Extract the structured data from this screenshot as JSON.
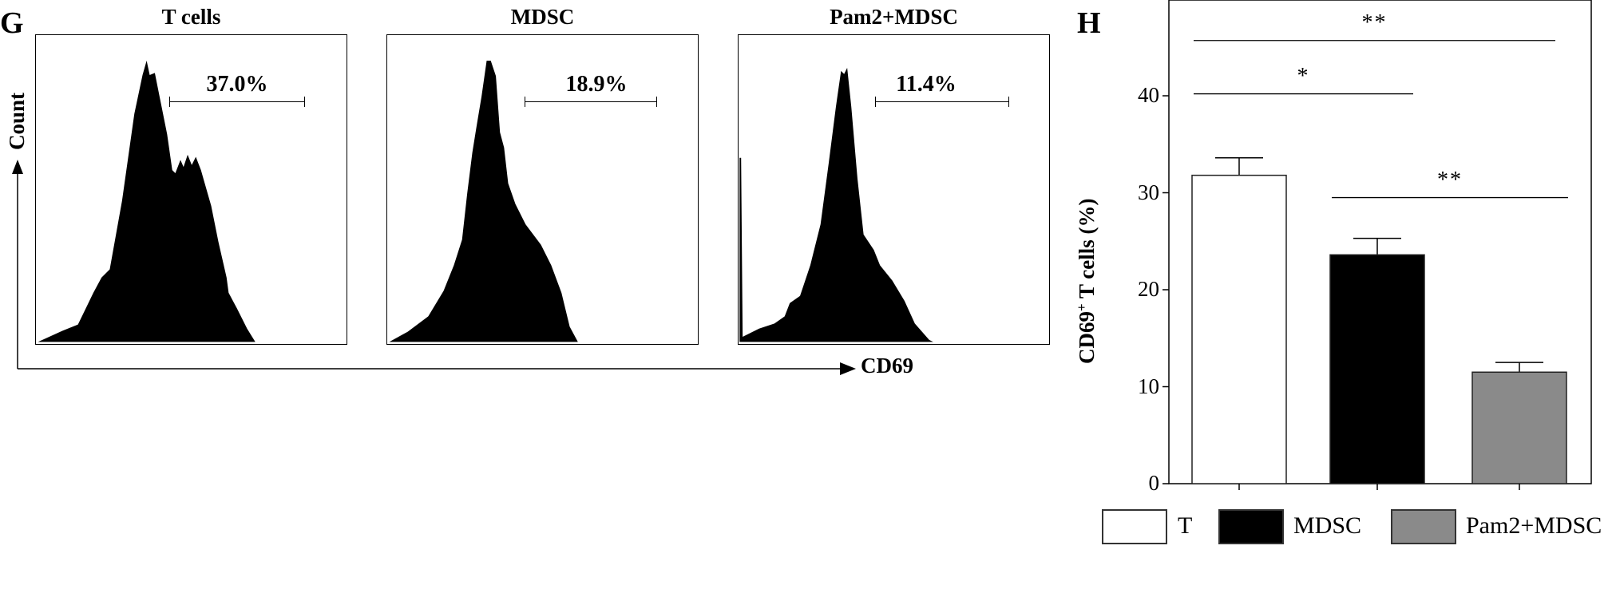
{
  "panel_g": {
    "letter": "G",
    "y_axis_label": "Count",
    "x_axis_label": "CD69",
    "histograms": [
      {
        "title": "T cells",
        "gate_percent": "37.0%"
      },
      {
        "title": "MDSC",
        "gate_percent": "18.9%"
      },
      {
        "title": "Pam2+MDSC",
        "gate_percent": "11.4%"
      }
    ]
  },
  "chart_data": {
    "type": "bar",
    "panel_letter": "H",
    "categories": [
      "T",
      "MDSC",
      "Pam2+MDSC"
    ],
    "values": [
      31.8,
      23.6,
      11.5
    ],
    "errors": [
      1.8,
      1.7,
      1.0
    ],
    "colors": [
      "#ffffff",
      "#000000",
      "#8a8a8a"
    ],
    "ylabel_main": "CD69",
    "ylabel_sup": "+",
    "ylabel_rest": " T cells (%)",
    "xlabel": "",
    "ylim": [
      0,
      50
    ],
    "yticks": [
      "0",
      "10",
      "20",
      "30",
      "40"
    ],
    "significance": [
      {
        "from": 0,
        "to": 2,
        "label": "**",
        "y": 45.7
      },
      {
        "from": 0,
        "to": 1,
        "label": "*",
        "y": 40.2
      },
      {
        "from": 1,
        "to": 2,
        "label": "**",
        "y": 29.5
      }
    ],
    "legend": [
      {
        "label": "T",
        "color": "#ffffff"
      },
      {
        "label": "MDSC",
        "color": "#000000"
      },
      {
        "label": "Pam2+MDSC",
        "color": "#8a8a8a"
      }
    ],
    "legend_position": "bottom"
  }
}
